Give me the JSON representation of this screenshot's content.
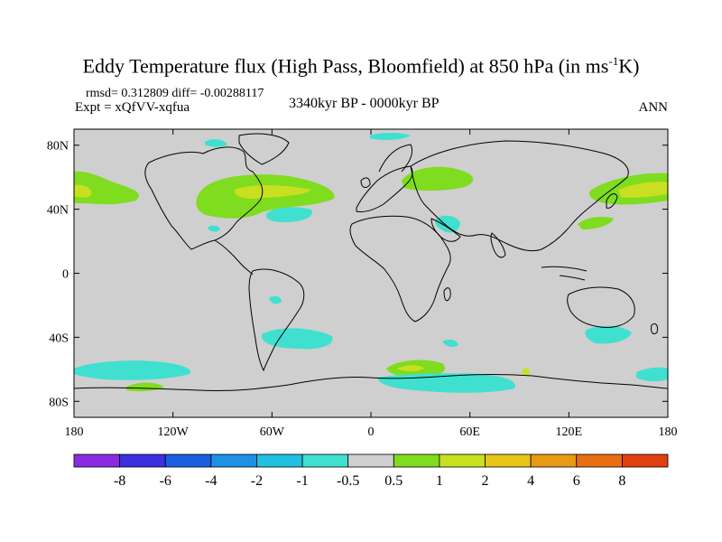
{
  "title": {
    "main": "Eddy Temperature flux (High Pass, Bloomfield) at 850 hPa (in ms",
    "superscript": "-1",
    "suffix": "K)"
  },
  "stats": {
    "rmsd_diff": "rmsd= 0.312809 diff= -0.00288117",
    "experiment": "Expt = xQfVV-xqfua"
  },
  "period": "3340kyr BP - 0000kyr BP",
  "season": "ANN",
  "axes": {
    "lat_labels": [
      "80N",
      "40N",
      "0",
      "40S",
      "80S"
    ],
    "lat_values": [
      80,
      40,
      0,
      -40,
      -80
    ],
    "lon_labels": [
      "180",
      "120W",
      "60W",
      "0",
      "60E",
      "120E",
      "180"
    ],
    "lon_values": [
      -180,
      -120,
      -60,
      0,
      60,
      120,
      180
    ]
  },
  "colorbar": {
    "colors": [
      "#8a2be2",
      "#3c2fe0",
      "#1a5fe0",
      "#1e90e6",
      "#20c0e0",
      "#40e0d0",
      "#cfcfcf",
      "#7fdc1e",
      "#c8e020",
      "#e8c418",
      "#e89a10",
      "#e86e10",
      "#e04010"
    ],
    "labels": [
      "-8",
      "-6",
      "-4",
      "-2",
      "-1",
      "-0.5",
      "0.5",
      "1",
      "2",
      "4",
      "6",
      "8"
    ]
  }
}
